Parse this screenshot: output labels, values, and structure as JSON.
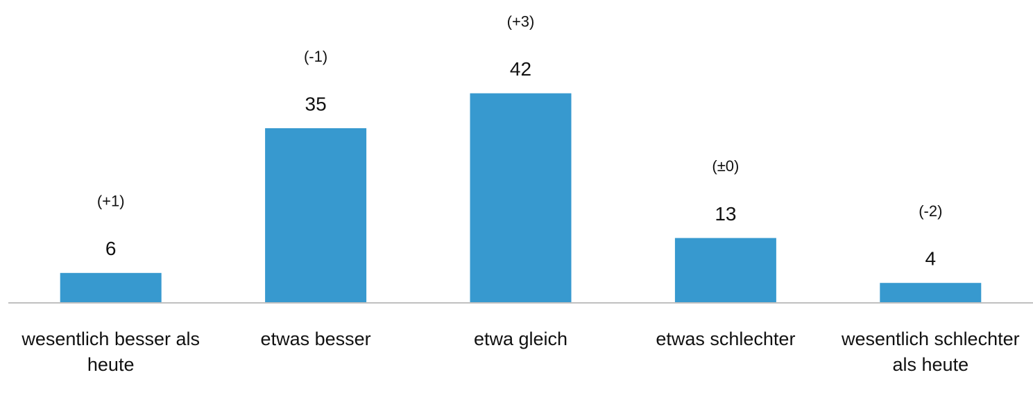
{
  "chart_data": {
    "type": "bar",
    "categories": [
      "wesentlich besser als heute",
      "etwas besser",
      "etwa gleich",
      "etwas schlechter",
      "wesentlich schlechter als heute"
    ],
    "values": [
      6,
      35,
      42,
      13,
      4
    ],
    "annotations": [
      "(+1)",
      "(-1)",
      "(+3)",
      "(±0)",
      "(-2)"
    ],
    "color": "#3799cf"
  }
}
